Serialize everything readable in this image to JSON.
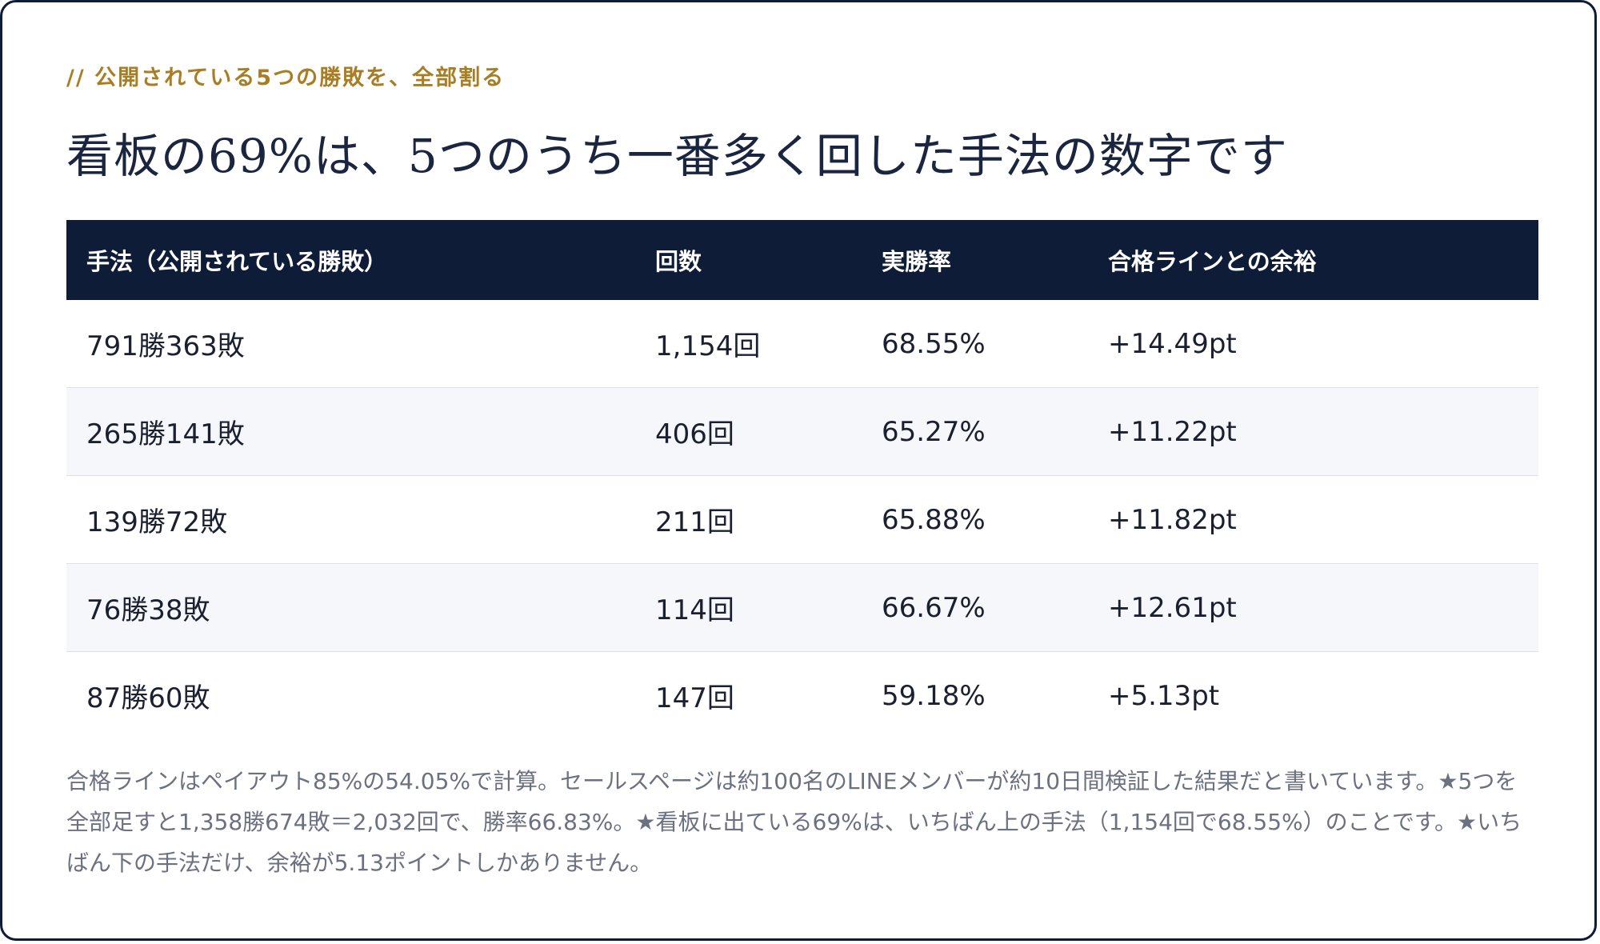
{
  "eyebrow": "// 公開されている5つの勝敗を、全部割る",
  "title": "看板の69%は、5つのうち一番多く回した手法の数字です",
  "table": {
    "headers": [
      "手法（公開されている勝敗）",
      "回数",
      "実勝率",
      "合格ラインとの余裕"
    ],
    "rows": [
      [
        "791勝363敗",
        "1,154回",
        "68.55%",
        "+14.49pt"
      ],
      [
        "265勝141敗",
        "406回",
        "65.27%",
        "+11.22pt"
      ],
      [
        "139勝72敗",
        "211回",
        "65.88%",
        "+11.82pt"
      ],
      [
        "76勝38敗",
        "114回",
        "66.67%",
        "+12.61pt"
      ],
      [
        "87勝60敗",
        "147回",
        "59.18%",
        "+5.13pt"
      ]
    ]
  },
  "note": "合格ラインはペイアウト85%の54.05%で計算。セールスページは約100名のLINEメンバーが約10日間検証した結果だと書いています。★5つを全部足すと1,358勝674敗＝2,032回で、勝率66.83%。★看板に出ている69%は、いちばん上の手法（1,154回で68.55%）のことです。★いちばん下の手法だけ、余裕が5.13ポイントしかありません。",
  "colors": {
    "navy": "#0e1c38",
    "gold": "#a97d24",
    "row_alt": "#f5f7fa"
  }
}
